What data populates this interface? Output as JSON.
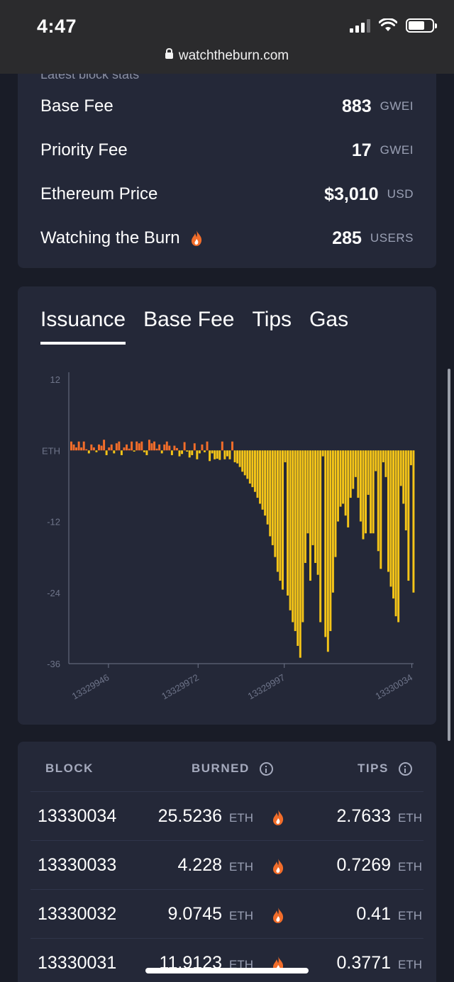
{
  "status_bar": {
    "time": "4:47",
    "url": "watchtheburn.com"
  },
  "stats": {
    "section_title_cut": "Latest block stats",
    "rows": [
      {
        "label": "Base Fee",
        "value": "883",
        "unit": "GWEI"
      },
      {
        "label": "Priority Fee",
        "value": "17",
        "unit": "GWEI"
      },
      {
        "label": "Ethereum Price",
        "value": "$3,010",
        "unit": "USD"
      },
      {
        "label": "Watching the Burn",
        "value": "285",
        "unit": "USERS"
      }
    ]
  },
  "tabs": [
    "Issuance",
    "Base Fee",
    "Tips",
    "Gas"
  ],
  "active_tab": "Issuance",
  "chart_data": {
    "type": "bar",
    "y_ticks": [
      "12",
      "ETH",
      "-12",
      "-24",
      "-36"
    ],
    "ylim": [
      -36,
      12
    ],
    "x_ticks": [
      "13329946",
      "13329972",
      "13329997",
      "13330034"
    ],
    "colors": {
      "positive": "#f26d2a",
      "negative": "#f5c518"
    },
    "values": [
      1.5,
      1,
      0.5,
      1.5,
      0.5,
      1.5,
      0.2,
      -0.5,
      1,
      0.5,
      -0.3,
      1,
      0.8,
      1.8,
      -0.8,
      0.5,
      1,
      -0.5,
      1.2,
      1.5,
      -0.8,
      0.5,
      1,
      0.3,
      1.5,
      -0.2,
      1.5,
      1.2,
      1.5,
      -0.3,
      -0.8,
      1.8,
      1.2,
      1.5,
      0.3,
      1,
      -0.5,
      1,
      1.5,
      0.8,
      -0.8,
      0.8,
      0.4,
      -1,
      -0.6,
      1.4,
      -0.2,
      -1.2,
      -0.8,
      1.2,
      -1.5,
      -0.5,
      1,
      -0.3,
      1.5,
      -1.8,
      -0.5,
      -1.5,
      -1.4,
      -1.6,
      1.5,
      -1.5,
      -1,
      -1.5,
      1.5,
      -2,
      -2.2,
      -2.8,
      -3.6,
      -4.2,
      -4.8,
      -5.6,
      -6.2,
      -7,
      -8,
      -9,
      -10,
      -11,
      -12.5,
      -14.5,
      -16,
      -18,
      -20.5,
      -22,
      -23.5,
      -2,
      -24.5,
      -27,
      -29,
      -30.5,
      -33,
      -35,
      -29,
      -19,
      -14,
      -22,
      -16,
      -19,
      -21,
      -29,
      -1,
      -31.5,
      -34,
      -30.5,
      -24,
      -18,
      -12,
      -9.5,
      -9,
      -11,
      -13,
      -8,
      -6.5,
      -4.5,
      -8,
      -12,
      -15,
      -14,
      -7.5,
      -14,
      -14,
      -3.5,
      -17,
      -20,
      -2,
      -4.5,
      -20.5,
      -23,
      -25,
      -28,
      -29,
      -6,
      -9,
      -13.5,
      -22,
      -2.5,
      -24
    ]
  },
  "table": {
    "headers": {
      "block": "BLOCK",
      "burned": "BURNED",
      "tips": "TIPS"
    },
    "rows": [
      {
        "block": "13330034",
        "burned": "25.5236",
        "burned_unit": "ETH",
        "tips": "2.7633",
        "tips_unit": "ETH"
      },
      {
        "block": "13330033",
        "burned": "4.228",
        "burned_unit": "ETH",
        "tips": "0.7269",
        "tips_unit": "ETH"
      },
      {
        "block": "13330032",
        "burned": "9.0745",
        "burned_unit": "ETH",
        "tips": "0.41",
        "tips_unit": "ETH"
      },
      {
        "block": "13330031",
        "burned": "11.9123",
        "burned_unit": "ETH",
        "tips": "0.3771",
        "tips_unit": "ETH"
      }
    ]
  }
}
